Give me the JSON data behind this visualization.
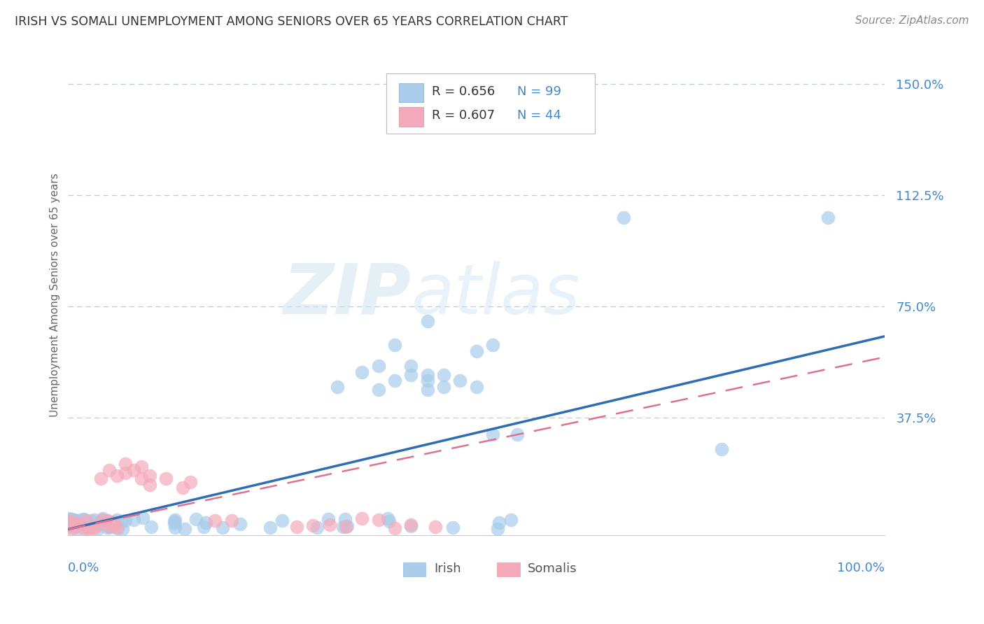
{
  "title": "IRISH VS SOMALI UNEMPLOYMENT AMONG SENIORS OVER 65 YEARS CORRELATION CHART",
  "source": "Source: ZipAtlas.com",
  "ylabel": "Unemployment Among Seniors over 65 years",
  "yticks": [
    0.0,
    0.375,
    0.75,
    1.125,
    1.5
  ],
  "ytick_labels": [
    "",
    "37.5%",
    "75.0%",
    "112.5%",
    "150.0%"
  ],
  "xmin": 0.0,
  "xmax": 1.0,
  "ymin": -0.02,
  "ymax": 1.6,
  "watermark": "ZIPatlas",
  "irish_color": "#A8CCEA",
  "somali_color": "#F4AABB",
  "irish_line_color": "#2E6DB4",
  "somali_line_color": "#E07090",
  "axis_color": "#4488CC",
  "legend_R_color": "#333333",
  "legend_N_color": "#4488CC",
  "grid_color": "#BBCCDD",
  "irish_line_end_y": 0.65,
  "somali_line_end_y": 0.58
}
